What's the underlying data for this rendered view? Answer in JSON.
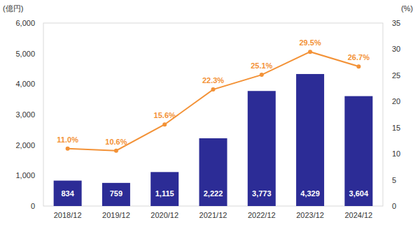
{
  "chart_data": {
    "type": "bar",
    "y_label": "(億円)",
    "y2_label": "(%)",
    "categories": [
      "2018/12",
      "2019/12",
      "2020/12",
      "2021/12",
      "2022/12",
      "2023/12",
      "2024/12"
    ],
    "series": [
      {
        "type": "bar",
        "color": "#2c2c96",
        "values": [
          834,
          759,
          1115,
          2222,
          3773,
          4329,
          3604
        ],
        "value_labels": [
          "834",
          "759",
          "1,115",
          "2,222",
          "3,773",
          "4,329",
          "3,604"
        ]
      },
      {
        "type": "line",
        "color": "#f39237",
        "axis": "y2",
        "marker": "circle",
        "line_style": "solid",
        "values": [
          11.0,
          10.6,
          15.6,
          22.3,
          25.1,
          29.5,
          26.7
        ],
        "value_labels": [
          "11.0%",
          "10.6%",
          "15.6%",
          "22.3%",
          "25.1%",
          "29.5%",
          "26.7%"
        ]
      }
    ],
    "ylim": [
      0,
      6000
    ],
    "yticks": [
      0,
      {
        "value": 1000,
        "label": "1,000"
      },
      {
        "value": 2000,
        "label": "2,000"
      },
      {
        "value": 3000,
        "label": "3,000"
      },
      {
        "value": 4000,
        "label": "4,000"
      },
      {
        "value": 5000,
        "label": "5,000"
      },
      {
        "value": 6000,
        "label": "6,000"
      }
    ],
    "y2lim": [
      0,
      35
    ],
    "y2ticks": [
      0,
      5,
      10,
      15,
      20,
      25,
      30,
      35
    ],
    "grid": false,
    "data_labels": true
  }
}
